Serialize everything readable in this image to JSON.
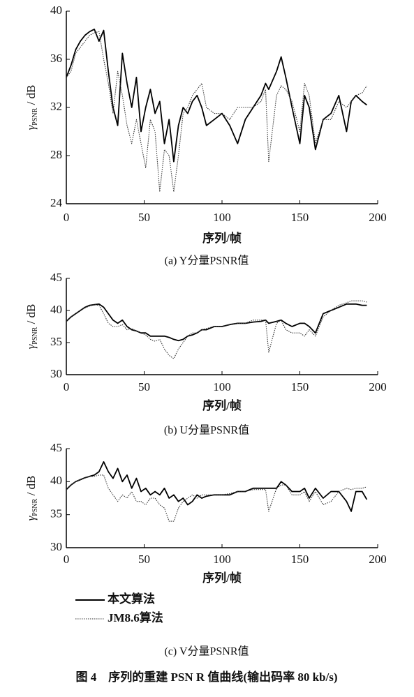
{
  "figure_caption": "图 4　序列的重建 PSN R 值曲线(输出码率 80 kb/s)",
  "chart_data": [
    {
      "type": "line",
      "caption": "(a) Y分量PSNR值",
      "xlabel": "序列/帧",
      "ylabel": [
        "γ",
        "PSNR",
        " / dB"
      ],
      "xlim": [
        0,
        200
      ],
      "xticks": [
        0,
        50,
        100,
        150,
        200
      ],
      "ylim": [
        24,
        40
      ],
      "yticks": [
        24,
        28,
        32,
        36,
        40
      ],
      "grid": false,
      "x": [
        0,
        3,
        6,
        9,
        12,
        15,
        18,
        21,
        24,
        27,
        30,
        33,
        36,
        39,
        42,
        45,
        48,
        51,
        54,
        57,
        60,
        63,
        66,
        69,
        72,
        75,
        78,
        81,
        84,
        87,
        90,
        95,
        100,
        105,
        110,
        115,
        120,
        125,
        128,
        130,
        135,
        138,
        141,
        145,
        150,
        153,
        156,
        160,
        165,
        170,
        175,
        180,
        183,
        186,
        190,
        193
      ],
      "series": [
        {
          "color": "#000000",
          "style": "solid",
          "values": [
            34.5,
            35.5,
            36.8,
            37.5,
            38,
            38.3,
            38.5,
            37.5,
            38.4,
            35,
            32,
            30.5,
            36.5,
            34,
            32,
            34.5,
            30,
            32,
            33.5,
            31.5,
            32.5,
            29,
            31,
            27.5,
            30.5,
            32,
            31.5,
            32.5,
            33,
            32,
            30.5,
            31,
            31.5,
            30.5,
            29,
            31,
            32,
            33,
            34,
            33.5,
            35,
            36.2,
            34.5,
            32,
            29,
            33,
            32,
            28.5,
            31,
            31.5,
            33,
            30,
            32.5,
            33,
            32.5,
            32.2
          ]
        },
        {
          "color": "#333333",
          "style": "dotted",
          "values": [
            34.5,
            35,
            36.5,
            37,
            37.5,
            38,
            38.2,
            38.3,
            36,
            34,
            31.5,
            35,
            33,
            30.5,
            29,
            31,
            29,
            27,
            31,
            30,
            25,
            28.5,
            28,
            25,
            28,
            31.5,
            32,
            33,
            33.5,
            34,
            32,
            31.5,
            31.5,
            31,
            32,
            32,
            32,
            32.5,
            33.5,
            27.5,
            33,
            33.8,
            33.5,
            32.5,
            30,
            34,
            33,
            29,
            31,
            31,
            32.5,
            32,
            32.5,
            33,
            33.2,
            33.8
          ]
        }
      ]
    },
    {
      "type": "line",
      "caption": "(b) U分量PSNR值",
      "xlabel": "序列/帧",
      "ylabel": [
        "γ",
        "PSNR",
        " / dB"
      ],
      "xlim": [
        0,
        200
      ],
      "xticks": [
        0,
        50,
        100,
        150,
        200
      ],
      "ylim": [
        30,
        45
      ],
      "yticks": [
        30,
        35,
        40,
        45
      ],
      "grid": false,
      "x": [
        0,
        3,
        6,
        9,
        12,
        15,
        18,
        21,
        24,
        27,
        30,
        33,
        36,
        39,
        42,
        45,
        48,
        51,
        54,
        57,
        60,
        63,
        66,
        69,
        72,
        75,
        78,
        81,
        84,
        87,
        90,
        95,
        100,
        105,
        110,
        115,
        120,
        125,
        128,
        130,
        135,
        138,
        141,
        145,
        150,
        153,
        156,
        160,
        165,
        170,
        175,
        180,
        183,
        186,
        190,
        193
      ],
      "series": [
        {
          "color": "#000000",
          "style": "solid",
          "values": [
            38.3,
            39,
            39.5,
            40,
            40.5,
            40.8,
            40.9,
            41,
            40.5,
            39.5,
            38.5,
            38,
            38.5,
            37.5,
            37,
            36.8,
            36.5,
            36.5,
            36,
            36,
            36,
            36,
            35.8,
            35.5,
            35.3,
            35.5,
            36,
            36.2,
            36.5,
            37,
            37,
            37.5,
            37.5,
            37.8,
            38,
            38,
            38.2,
            38.3,
            38.5,
            38,
            38.3,
            38.5,
            38,
            37.5,
            38,
            38,
            37.5,
            36.5,
            39.5,
            40,
            40.5,
            41,
            41,
            41,
            40.8,
            40.8
          ]
        },
        {
          "color": "#333333",
          "style": "dotted",
          "values": [
            38.3,
            39,
            39.5,
            40,
            40.4,
            40.7,
            40.9,
            40.8,
            39.5,
            38,
            37.5,
            37.5,
            37.8,
            37,
            37.2,
            36.8,
            36.5,
            36.2,
            35.5,
            35.2,
            35.5,
            34,
            33,
            32.5,
            34,
            35,
            36,
            36.5,
            36.5,
            37,
            37.2,
            37.5,
            37.5,
            37.8,
            38,
            38,
            38.5,
            38.5,
            38.5,
            33.5,
            38,
            38.5,
            37,
            36.5,
            36.5,
            36,
            37,
            36,
            39,
            40,
            40.8,
            41.2,
            41.5,
            41.5,
            41.5,
            41.3
          ]
        }
      ]
    },
    {
      "type": "line",
      "caption": "(c) V分量PSNR值",
      "xlabel": "序列/帧",
      "ylabel": [
        "γ",
        "PSNR",
        " / dB"
      ],
      "xlim": [
        0,
        200
      ],
      "xticks": [
        0,
        50,
        100,
        150,
        200
      ],
      "ylim": [
        30,
        45
      ],
      "yticks": [
        30,
        35,
        40,
        45
      ],
      "grid": false,
      "x": [
        0,
        3,
        6,
        9,
        12,
        15,
        18,
        21,
        24,
        27,
        30,
        33,
        36,
        39,
        42,
        45,
        48,
        51,
        54,
        57,
        60,
        63,
        66,
        69,
        72,
        75,
        78,
        81,
        84,
        87,
        90,
        95,
        100,
        105,
        110,
        115,
        120,
        125,
        128,
        130,
        135,
        138,
        141,
        145,
        150,
        153,
        156,
        160,
        165,
        170,
        175,
        180,
        183,
        186,
        190,
        193
      ],
      "series": [
        {
          "name": "本文算法",
          "color": "#000000",
          "style": "solid",
          "values": [
            38.8,
            39.5,
            40,
            40.3,
            40.6,
            40.8,
            41,
            41.5,
            43,
            41.5,
            40.5,
            42,
            40,
            41,
            39,
            40.5,
            38.5,
            39,
            38,
            38.5,
            38,
            39,
            37.5,
            38,
            37,
            37.5,
            36.5,
            37,
            38,
            37.5,
            37.8,
            38,
            38,
            38,
            38.5,
            38.5,
            39,
            39,
            39,
            39,
            39,
            40,
            39.5,
            38.5,
            38.5,
            39,
            37.5,
            39,
            37.5,
            38.5,
            38.5,
            37,
            35.5,
            38.5,
            38.5,
            37.3
          ]
        },
        {
          "name": "JM8.6算法",
          "color": "#333333",
          "style": "dotted",
          "values": [
            38.8,
            39.5,
            40,
            40.3,
            40.6,
            40.8,
            40.8,
            41,
            41,
            39,
            38,
            37,
            38,
            37.5,
            38.5,
            37,
            37,
            36.5,
            37.5,
            37.5,
            36.5,
            36,
            34,
            34,
            36,
            37,
            37.5,
            38,
            37.5,
            38,
            38,
            38,
            38,
            38.2,
            38.5,
            38.5,
            38.8,
            38.8,
            38.8,
            35.5,
            39,
            39.5,
            39.5,
            38,
            38,
            38.5,
            37,
            38.5,
            36.5,
            37,
            38.5,
            39,
            38.8,
            39,
            39,
            39.2
          ]
        }
      ]
    }
  ]
}
